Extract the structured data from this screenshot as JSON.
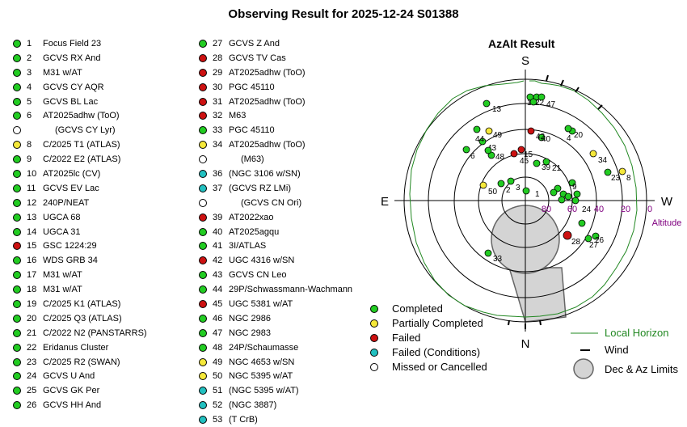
{
  "title": "Observing Result for 2025-12-24 S01388",
  "plot": {
    "title": "AzAlt Result",
    "compass": {
      "s": "S",
      "n": "N",
      "e": "E",
      "w": "W"
    },
    "altitude_ticks": [
      "80",
      "60",
      "40",
      "20",
      "0"
    ],
    "altitude_label": "Altitude",
    "marker_labels": [
      "1",
      "2",
      "3",
      "4",
      "6",
      "8",
      "9",
      "13",
      "14",
      "15",
      "20",
      "21",
      "22",
      "23",
      "24",
      "26",
      "27",
      "28",
      "33",
      "34",
      "39",
      "40",
      "42",
      "43",
      "44",
      "45",
      "47",
      "48",
      "49",
      "50"
    ]
  },
  "status_colors": {
    "completed": "#22cc22",
    "partial": "#f5e83a",
    "failed": "#cc1111",
    "failed_conditions": "#22c0c0",
    "missed": "#ffffff"
  },
  "targets_left": [
    {
      "num": "1",
      "name": "Focus Field 23",
      "status": "completed"
    },
    {
      "num": "2",
      "name": "GCVS RX And",
      "status": "completed"
    },
    {
      "num": "3",
      "name": "M31 w/AT",
      "status": "completed"
    },
    {
      "num": "4",
      "name": "GCVS CY AQR",
      "status": "completed"
    },
    {
      "num": "5",
      "name": "GCVS BL Lac",
      "status": "completed"
    },
    {
      "num": "6",
      "name": "AT2025adhw (ToO)",
      "status": "completed"
    },
    {
      "num": "",
      "name": "(GCVS CY Lyr)",
      "status": "missed"
    },
    {
      "num": "8",
      "name": "C/2025 T1 (ATLAS)",
      "status": "partial"
    },
    {
      "num": "9",
      "name": "C/2022 E2 (ATLAS)",
      "status": "completed"
    },
    {
      "num": "10",
      "name": "AT2025lc (CV)",
      "status": "completed"
    },
    {
      "num": "11",
      "name": "GCVS EV Lac",
      "status": "completed"
    },
    {
      "num": "12",
      "name": "240P/NEAT",
      "status": "completed"
    },
    {
      "num": "13",
      "name": "UGCA 68",
      "status": "completed"
    },
    {
      "num": "14",
      "name": "UGCA 31",
      "status": "completed"
    },
    {
      "num": "15",
      "name": "GSC 1224:29",
      "status": "failed"
    },
    {
      "num": "16",
      "name": "WDS GRB 34",
      "status": "completed"
    },
    {
      "num": "17",
      "name": "M31 w/AT",
      "status": "completed"
    },
    {
      "num": "18",
      "name": "M31 w/AT",
      "status": "completed"
    },
    {
      "num": "19",
      "name": "C/2025 K1 (ATLAS)",
      "status": "completed"
    },
    {
      "num": "20",
      "name": "C/2025 Q3 (ATLAS)",
      "status": "completed"
    },
    {
      "num": "21",
      "name": "C/2022 N2 (PANSTARRS)",
      "status": "completed"
    },
    {
      "num": "22",
      "name": "Eridanus Cluster",
      "status": "completed"
    },
    {
      "num": "23",
      "name": "C/2025 R2 (SWAN)",
      "status": "completed"
    },
    {
      "num": "24",
      "name": "GCVS U And",
      "status": "completed"
    },
    {
      "num": "25",
      "name": "GCVS GK Per",
      "status": "completed"
    },
    {
      "num": "26",
      "name": "GCVS HH And",
      "status": "completed"
    }
  ],
  "targets_right": [
    {
      "num": "27",
      "name": "GCVS Z And",
      "status": "completed"
    },
    {
      "num": "28",
      "name": "GCVS TV Cas",
      "status": "failed"
    },
    {
      "num": "29",
      "name": "AT2025adhw (ToO)",
      "status": "failed"
    },
    {
      "num": "30",
      "name": "PGC 45110",
      "status": "failed"
    },
    {
      "num": "31",
      "name": "AT2025adhw (ToO)",
      "status": "failed"
    },
    {
      "num": "32",
      "name": "M63",
      "status": "failed"
    },
    {
      "num": "33",
      "name": "PGC 45110",
      "status": "completed"
    },
    {
      "num": "34",
      "name": "AT2025adhw (ToO)",
      "status": "partial"
    },
    {
      "num": "",
      "name": "(M63)",
      "status": "missed"
    },
    {
      "num": "36",
      "name": "(NGC 3106 w/SN)",
      "status": "failed_conditions"
    },
    {
      "num": "37",
      "name": "(GCVS RZ LMi)",
      "status": "failed_conditions"
    },
    {
      "num": "",
      "name": "(GCVS CN Ori)",
      "status": "missed"
    },
    {
      "num": "39",
      "name": "AT2022xao",
      "status": "failed"
    },
    {
      "num": "40",
      "name": "AT2025agqu",
      "status": "completed"
    },
    {
      "num": "41",
      "name": "3I/ATLAS",
      "status": "completed"
    },
    {
      "num": "42",
      "name": "UGC 4316 w/SN",
      "status": "failed"
    },
    {
      "num": "43",
      "name": "GCVS CN Leo",
      "status": "completed"
    },
    {
      "num": "44",
      "name": "29P/Schwassmann-Wachmann",
      "status": "completed"
    },
    {
      "num": "45",
      "name": "UGC 5381 w/AT",
      "status": "failed"
    },
    {
      "num": "46",
      "name": "NGC 2986",
      "status": "completed"
    },
    {
      "num": "47",
      "name": "NGC 2983",
      "status": "completed"
    },
    {
      "num": "48",
      "name": "24P/Schaumasse",
      "status": "completed"
    },
    {
      "num": "49",
      "name": "NGC 4653 w/SN",
      "status": "partial"
    },
    {
      "num": "50",
      "name": "NGC 5395 w/AT",
      "status": "partial"
    },
    {
      "num": "51",
      "name": "(NGC 5395 w/AT)",
      "status": "failed_conditions"
    },
    {
      "num": "52",
      "name": "(NGC 3887)",
      "status": "failed_conditions"
    },
    {
      "num": "53",
      "name": "(T CrB)",
      "status": "failed_conditions"
    }
  ],
  "legend": {
    "completed": "Completed",
    "partial": "Partially Completed",
    "failed": "Failed",
    "failed_conditions": "Failed (Conditions)",
    "missed": "Missed or Cancelled",
    "local_horizon": "Local Horizon",
    "wind": "Wind",
    "limits": "Dec & Az Limits"
  }
}
